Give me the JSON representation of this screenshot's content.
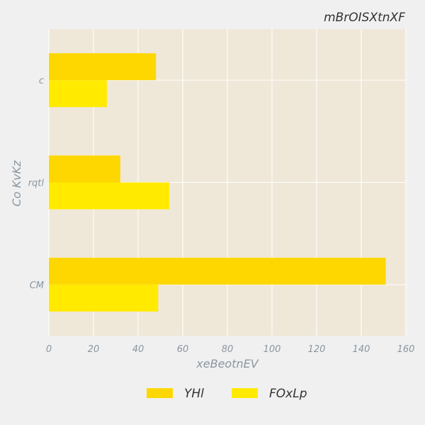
{
  "chart_data": {
    "type": "bar",
    "orientation": "horizontal",
    "title": "mBrOISXtnXF",
    "xlabel": "xeBeotnEV",
    "ylabel": "Co KvKz",
    "categories": [
      "c",
      "rqtl",
      "CM"
    ],
    "series": [
      {
        "name": "YHl",
        "values": [
          48,
          32,
          151
        ],
        "color": "#ffd700"
      },
      {
        "name": "FOxLp",
        "values": [
          26,
          54,
          49
        ],
        "color": "#ffea00"
      }
    ],
    "xlim": [
      0,
      160
    ],
    "xticks": [
      0,
      20,
      40,
      60,
      80,
      100,
      120,
      140,
      160
    ],
    "grid": true,
    "legend_position": "bottom"
  },
  "colors": {
    "plot_background": "#efe8d8",
    "page_background": "#f0f0f0",
    "grid": "#ffffff"
  }
}
